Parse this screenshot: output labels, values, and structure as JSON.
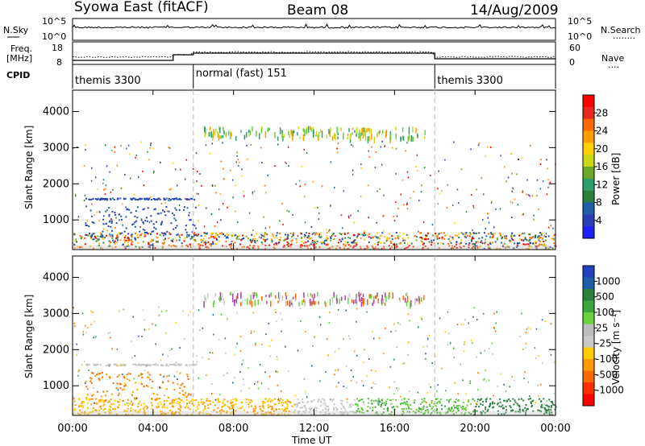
{
  "header": {
    "title": "Syowa East (fitACF)",
    "beam": "Beam 08",
    "date": "14/Aug/2009"
  },
  "status_panels": {
    "left_labels": {
      "nsky": "N.Sky",
      "freq": "Freq.",
      "mhz": "[MHz]",
      "cpid": "CPID"
    },
    "right_labels": {
      "nsearch": "N.Search",
      "nave": "Nave",
      "nsearch_dots": "........",
      "nave_dots": "...."
    },
    "nsky_ticks": [
      "10^5",
      "10^0"
    ],
    "freq_ticks": [
      "18",
      "8"
    ],
    "right_noise_ticks": [
      "10^5",
      "10^0"
    ],
    "right_nave_ticks": [
      "60",
      "0"
    ],
    "cpid_segments": [
      {
        "label": "themis 3300",
        "start_hour": 0,
        "end_hour": 6
      },
      {
        "label": "normal (fast) 151",
        "start_hour": 6,
        "end_hour": 18
      },
      {
        "label": "themis 3300",
        "start_hour": 18,
        "end_hour": 24
      }
    ]
  },
  "chart_data": [
    {
      "type": "heatmap",
      "name": "power",
      "ylabel": "Slant Range [km]",
      "colorbar_label": "Power [dB]",
      "colorbar_ticks": [
        "28",
        "24",
        "20",
        "16",
        "12",
        "8",
        "4"
      ],
      "colorbar_colors": [
        "#ff0000",
        "#e8281c",
        "#ff6a00",
        "#ff9c00",
        "#ffd000",
        "#c8d818",
        "#6aa828",
        "#2f9e6f",
        "#2a7f3c",
        "#1e5fa8",
        "#2a3fb6",
        "#2020ff"
      ],
      "yticks": [
        1000,
        2000,
        3000,
        4000
      ],
      "ylim": [
        180,
        4590
      ],
      "xlim": [
        0,
        24
      ]
    },
    {
      "type": "heatmap",
      "name": "velocity",
      "ylabel": "Slant Range [km]",
      "xlabel": "Time UT",
      "colorbar_label": "Velocity [m s⁻¹]",
      "colorbar_ticks": [
        "1000",
        "500",
        "100",
        "25",
        "-25",
        "-100",
        "-500",
        "-1000"
      ],
      "colorbar_colors": [
        "#2040c0",
        "#1e5fa8",
        "#2a7f3c",
        "#3aa83a",
        "#6ad040",
        "#bcbcbc",
        "#c8c8c8",
        "#ffcc00",
        "#ff9a00",
        "#ff6a00",
        "#ff3000",
        "#ff0000"
      ],
      "yticks": [
        1000,
        2000,
        3000,
        4000
      ],
      "ylim": [
        180,
        4590
      ],
      "xlim": [
        0,
        24
      ]
    }
  ],
  "xaxis": {
    "ticks": [
      "00:00",
      "04:00",
      "08:00",
      "12:00",
      "16:00",
      "20:00",
      "00:00"
    ]
  }
}
